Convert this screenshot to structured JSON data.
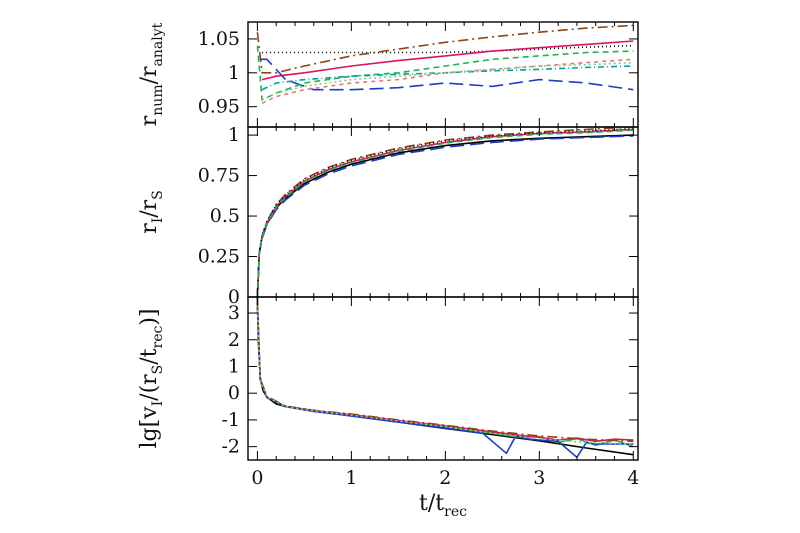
{
  "chart_data": [
    {
      "type": "line",
      "panel": "top",
      "ylabel": {
        "main": "r",
        "sub1": "num",
        "sep": "/r",
        "sub2": "analyt"
      },
      "xlim": [
        -0.1,
        4.05
      ],
      "ylim": [
        0.92,
        1.075
      ],
      "yticks": [
        {
          "v": 0.95,
          "label": "0.95"
        },
        {
          "v": 1.0,
          "label": "1"
        },
        {
          "v": 1.05,
          "label": "1.05"
        }
      ],
      "series": [
        {
          "color": "#000000",
          "dash": "1,3",
          "x": [
            0.05,
            0.2,
            0.5,
            1,
            1.5,
            2,
            2.5,
            3,
            3.5,
            4
          ],
          "y": [
            1.03,
            1.03,
            1.03,
            1.03,
            1.03,
            1.03,
            1.032,
            1.035,
            1.038,
            1.04
          ]
        },
        {
          "color": "#8b4513",
          "dash": "10,4,2,4",
          "x": [
            0,
            0.05,
            0.2,
            0.5,
            1,
            1.5,
            2,
            2.5,
            3,
            3.5,
            4
          ],
          "y": [
            1.06,
            1.0,
            1.0,
            1.01,
            1.025,
            1.035,
            1.045,
            1.053,
            1.06,
            1.066,
            1.07
          ]
        },
        {
          "color": "#e0115f",
          "dash": "",
          "x": [
            0.05,
            0.2,
            0.5,
            1,
            1.5,
            2,
            2.5,
            3,
            3.5,
            4
          ],
          "y": [
            0.99,
            0.995,
            1.0,
            1.01,
            1.018,
            1.025,
            1.032,
            1.037,
            1.042,
            1.047
          ]
        },
        {
          "color": "#1e3cc8",
          "dash": "14,6",
          "x": [
            0.03,
            0.1,
            0.3,
            0.6,
            1,
            1.5,
            2,
            2.5,
            3,
            3.5,
            4
          ],
          "y": [
            1.02,
            1.02,
            0.99,
            0.975,
            0.975,
            0.978,
            0.985,
            0.98,
            0.99,
            0.985,
            0.975
          ]
        },
        {
          "color": "#22b14c",
          "dash": "6,4",
          "x": [
            0,
            0.05,
            0.2,
            0.5,
            1,
            1.5,
            2,
            2.5,
            3,
            3.5,
            4
          ],
          "y": [
            1.04,
            0.96,
            0.97,
            0.985,
            0.995,
            1.0,
            1.01,
            1.02,
            1.025,
            1.03,
            1.032
          ]
        },
        {
          "color": "#00a0a0",
          "dash": "6,3,1,3",
          "x": [
            0.05,
            0.2,
            0.5,
            1,
            1.5,
            2,
            2.5,
            3,
            3.5,
            4
          ],
          "y": [
            0.975,
            0.985,
            0.99,
            0.995,
            0.998,
            1.0,
            1.003,
            1.005,
            1.008,
            1.01
          ]
        },
        {
          "color": "#e07a7a",
          "dash": "4,4",
          "x": [
            0.05,
            0.2,
            0.5,
            1,
            1.5,
            2,
            2.5,
            3,
            3.5,
            4
          ],
          "y": [
            0.955,
            0.965,
            0.975,
            0.985,
            0.99,
            1.0,
            1.005,
            1.01,
            1.015,
            1.02
          ]
        },
        {
          "color": "#7fd07f",
          "dash": "2,3",
          "x": [
            0.05,
            0.2,
            0.5,
            1,
            1.5,
            2,
            2.5,
            3,
            3.5,
            4
          ],
          "y": [
            0.96,
            0.97,
            0.98,
            0.99,
            0.995,
            1.0,
            1.005,
            1.01,
            1.012,
            1.015
          ]
        }
      ]
    },
    {
      "type": "line",
      "panel": "middle",
      "ylabel": {
        "main": "r",
        "sub1": "I",
        "sep": "/r",
        "sub2": "S"
      },
      "xlim": [
        -0.1,
        4.05
      ],
      "ylim": [
        0,
        1.05
      ],
      "yticks": [
        {
          "v": 0,
          "label": "0"
        },
        {
          "v": 0.25,
          "label": "0.25"
        },
        {
          "v": 0.5,
          "label": "0.5"
        },
        {
          "v": 0.75,
          "label": "0.75"
        },
        {
          "v": 1.0,
          "label": "1"
        }
      ],
      "series": [
        {
          "color": "#000000",
          "dash": "",
          "x": [
            0,
            0.02,
            0.05,
            0.1,
            0.2,
            0.3,
            0.5,
            0.75,
            1,
            1.5,
            2,
            2.5,
            3,
            3.5,
            4
          ],
          "y": [
            0,
            0.27,
            0.37,
            0.45,
            0.55,
            0.61,
            0.7,
            0.77,
            0.82,
            0.89,
            0.935,
            0.965,
            0.98,
            0.99,
            1.0
          ]
        },
        {
          "color": "#8b4513",
          "dash": "10,4,2,4",
          "x": [
            0,
            0.02,
            0.05,
            0.1,
            0.2,
            0.3,
            0.5,
            0.75,
            1,
            1.5,
            2,
            2.5,
            3,
            3.5,
            4
          ],
          "y": [
            0,
            0.28,
            0.38,
            0.465,
            0.57,
            0.635,
            0.73,
            0.8,
            0.85,
            0.92,
            0.97,
            1.0,
            1.02,
            1.035,
            1.05
          ]
        },
        {
          "color": "#e0115f",
          "dash": "",
          "x": [
            0,
            0.02,
            0.05,
            0.1,
            0.2,
            0.3,
            0.5,
            0.75,
            1,
            1.5,
            2,
            2.5,
            3,
            3.5,
            4
          ],
          "y": [
            0,
            0.27,
            0.37,
            0.455,
            0.56,
            0.62,
            0.715,
            0.785,
            0.835,
            0.905,
            0.955,
            0.99,
            1.01,
            1.02,
            1.035
          ]
        },
        {
          "color": "#1e3cc8",
          "dash": "14,6",
          "x": [
            0,
            0.02,
            0.05,
            0.1,
            0.2,
            0.3,
            0.5,
            0.75,
            1,
            1.5,
            2,
            2.5,
            3,
            3.5,
            4
          ],
          "y": [
            0,
            0.27,
            0.36,
            0.445,
            0.54,
            0.6,
            0.69,
            0.76,
            0.81,
            0.88,
            0.925,
            0.955,
            0.975,
            0.985,
            0.995
          ]
        },
        {
          "color": "#000000",
          "dash": "1,3",
          "x": [
            0,
            0.02,
            0.05,
            0.1,
            0.2,
            0.3,
            0.5,
            0.75,
            1,
            1.5,
            2,
            2.5,
            3,
            3.5,
            4
          ],
          "y": [
            0,
            0.28,
            0.38,
            0.465,
            0.57,
            0.63,
            0.725,
            0.795,
            0.845,
            0.915,
            0.965,
            0.995,
            1.015,
            1.025,
            1.04
          ]
        },
        {
          "color": "#22b14c",
          "dash": "6,4",
          "x": [
            0,
            0.02,
            0.05,
            0.1,
            0.2,
            0.3,
            0.5,
            0.75,
            1,
            1.5,
            2,
            2.5,
            3,
            3.5,
            4
          ],
          "y": [
            0,
            0.27,
            0.37,
            0.45,
            0.555,
            0.615,
            0.71,
            0.78,
            0.83,
            0.9,
            0.95,
            0.985,
            1.005,
            1.015,
            1.03
          ]
        }
      ]
    },
    {
      "type": "line",
      "panel": "bottom",
      "ylabel": {
        "main": "lg[v",
        "sub1": "I",
        "sep": "/(r",
        "sub2": "S",
        "sep2": "/t",
        "sub3": "rec",
        "end": ")]"
      },
      "xlabel": {
        "main": "t/t",
        "sub": "rec"
      },
      "xlim": [
        -0.1,
        4.05
      ],
      "ylim": [
        -2.5,
        3.6
      ],
      "xticks": [
        {
          "v": 0,
          "label": "0"
        },
        {
          "v": 1,
          "label": "1"
        },
        {
          "v": 2,
          "label": "2"
        },
        {
          "v": 3,
          "label": "3"
        },
        {
          "v": 4,
          "label": "4"
        }
      ],
      "yticks": [
        {
          "v": -2,
          "label": "-2"
        },
        {
          "v": -1,
          "label": "-1"
        },
        {
          "v": 0,
          "label": "0"
        },
        {
          "v": 1,
          "label": "1"
        },
        {
          "v": 2,
          "label": "2"
        },
        {
          "v": 3,
          "label": "3"
        }
      ],
      "series": [
        {
          "color": "#000000",
          "dash": "",
          "x": [
            0.0,
            0.01,
            0.03,
            0.06,
            0.1,
            0.2,
            0.3,
            0.5,
            0.75,
            1,
            1.5,
            2,
            2.5,
            3,
            3.5,
            4
          ],
          "y": [
            3.6,
            2.0,
            0.6,
            0.1,
            -0.15,
            -0.4,
            -0.5,
            -0.6,
            -0.72,
            -0.85,
            -1.08,
            -1.32,
            -1.55,
            -1.78,
            -2.05,
            -2.3
          ]
        },
        {
          "color": "#22b14c",
          "dash": "",
          "x": [
            0.0,
            0.03,
            0.1,
            0.3,
            0.6,
            1,
            1.5,
            2,
            2.5,
            2.8,
            3,
            3.2,
            3.4,
            3.6,
            3.8,
            4
          ],
          "y": [
            3.4,
            0.55,
            -0.15,
            -0.5,
            -0.67,
            -0.82,
            -1.05,
            -1.25,
            -1.5,
            -1.65,
            -1.62,
            -1.85,
            -1.7,
            -1.95,
            -1.75,
            -2.0
          ]
        },
        {
          "color": "#e0115f",
          "dash": "",
          "x": [
            0.0,
            0.03,
            0.1,
            0.3,
            0.6,
            1,
            1.5,
            2,
            2.5,
            2.8,
            3,
            3.2,
            3.4,
            3.6,
            3.8,
            4
          ],
          "y": [
            3.4,
            0.5,
            -0.15,
            -0.5,
            -0.66,
            -0.8,
            -1.02,
            -1.22,
            -1.45,
            -1.58,
            -1.65,
            -1.75,
            -1.68,
            -1.8,
            -1.72,
            -1.75
          ]
        },
        {
          "color": "#1e3cc8",
          "dash": "",
          "x": [
            0.0,
            0.03,
            0.1,
            0.3,
            0.6,
            1,
            1.5,
            2,
            2.4,
            2.55,
            2.65,
            2.75,
            2.85,
            3,
            3.2,
            3.4,
            3.5,
            3.6,
            4
          ],
          "y": [
            3.3,
            0.5,
            -0.15,
            -0.5,
            -0.68,
            -0.85,
            -1.08,
            -1.3,
            -1.5,
            -1.95,
            -2.25,
            -1.6,
            -1.7,
            -1.75,
            -1.8,
            -2.4,
            -1.85,
            -1.9,
            -1.9
          ]
        },
        {
          "color": "#8b4513",
          "dash": "10,4,2,4",
          "x": [
            0.0,
            0.03,
            0.1,
            0.3,
            0.6,
            1,
            1.5,
            2,
            2.5,
            3,
            3.5,
            4
          ],
          "y": [
            3.4,
            0.55,
            -0.12,
            -0.48,
            -0.64,
            -0.78,
            -1.0,
            -1.2,
            -1.42,
            -1.6,
            -1.72,
            -1.8
          ]
        },
        {
          "color": "#7fd07f",
          "dash": "2,3",
          "x": [
            0.0,
            0.03,
            0.1,
            0.3,
            0.6,
            1,
            1.5,
            2,
            2.5,
            3,
            3.5,
            4
          ],
          "y": [
            3.3,
            0.5,
            -0.14,
            -0.5,
            -0.66,
            -0.82,
            -1.04,
            -1.25,
            -1.5,
            -1.7,
            -1.85,
            -1.9
          ]
        }
      ]
    }
  ]
}
